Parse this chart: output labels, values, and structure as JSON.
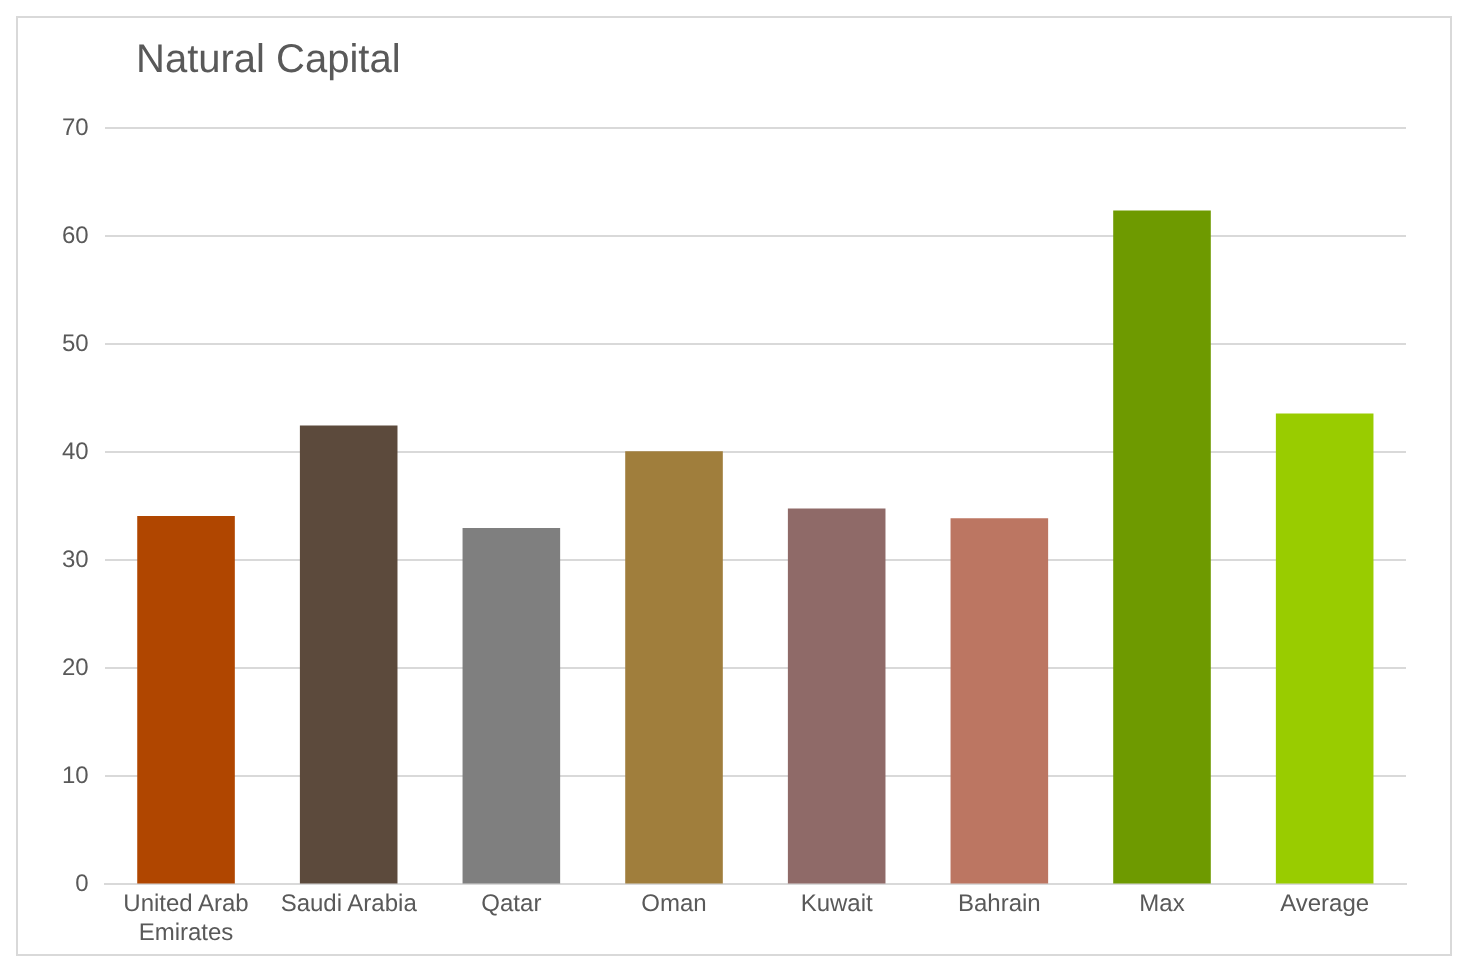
{
  "chart_data": {
    "type": "bar",
    "title": "Natural Capital",
    "categories": [
      "United Arab Emirates",
      "Saudi Arabia",
      "Qatar",
      "Oman",
      "Kuwait",
      "Bahrain",
      "Max",
      "Average"
    ],
    "values": [
      34.1,
      42.5,
      33.0,
      40.1,
      34.8,
      33.9,
      62.4,
      43.6
    ],
    "colors": [
      "#b04600",
      "#5c4a3c",
      "#7f7f7f",
      "#a07e3c",
      "#8f6a68",
      "#bc7662",
      "#6e9a00",
      "#99cc00"
    ],
    "ylim": [
      0,
      70
    ],
    "yticks": [
      0,
      10,
      20,
      30,
      40,
      50,
      60,
      70
    ],
    "grid": "y",
    "legend": false
  }
}
